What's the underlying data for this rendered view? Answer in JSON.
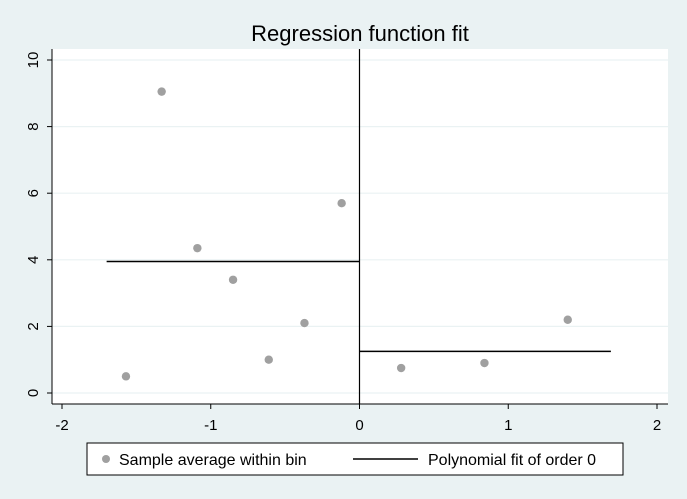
{
  "chart_data": {
    "type": "scatter",
    "title": "Regression function fit",
    "xlabel": "",
    "ylabel": "",
    "xlim": [
      -2,
      2
    ],
    "ylim": [
      0,
      10
    ],
    "xticks": [
      "-2",
      "-1",
      "0",
      "1",
      "2"
    ],
    "yticks": [
      "0",
      "2",
      "4",
      "6",
      "8",
      "10"
    ],
    "grid": "horizontal",
    "cutoff": 0,
    "legend_position": "bottom",
    "colors": {
      "background": "#eaf2f3",
      "plot_area": "#ffffff",
      "points": "#a0a0a0",
      "fit_line": "#000000",
      "gridline": "#eaf2f3"
    },
    "series": [
      {
        "name": "Sample average within bin",
        "kind": "scatter",
        "x": [
          -1.57,
          -1.33,
          -1.09,
          -0.85,
          -0.61,
          -0.37,
          -0.12,
          0.28,
          0.84,
          1.4
        ],
        "y": [
          0.5,
          9.05,
          4.35,
          3.4,
          1.0,
          2.1,
          5.7,
          0.75,
          0.9,
          2.2
        ]
      },
      {
        "name": "Polynomial fit of order 0",
        "kind": "step",
        "segments": [
          {
            "x_start": -1.7,
            "x_end": 0,
            "y": 3.95
          },
          {
            "x_start": 0,
            "x_end": 1.69,
            "y": 1.25
          }
        ]
      }
    ]
  }
}
